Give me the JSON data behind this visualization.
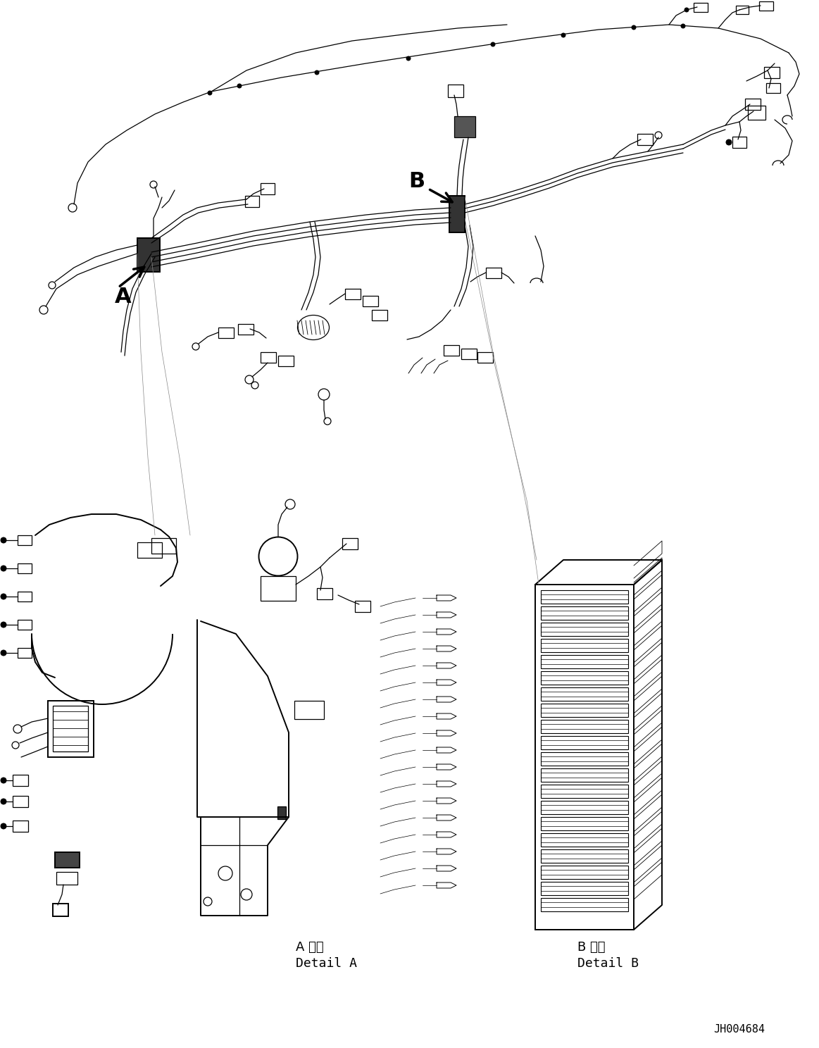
{
  "background_color": "#ffffff",
  "line_color": "#000000",
  "fig_width": 11.63,
  "fig_height": 14.88,
  "dpi": 100,
  "label_A": "A",
  "label_B": "B",
  "detail_A_jp": "A 詳細",
  "detail_A_en": "Detail A",
  "detail_B_jp": "B 詳細",
  "detail_B_en": "Detail B",
  "part_number": "JH004684",
  "font_size_labels": 22,
  "font_size_details": 13,
  "font_size_partnum": 11
}
